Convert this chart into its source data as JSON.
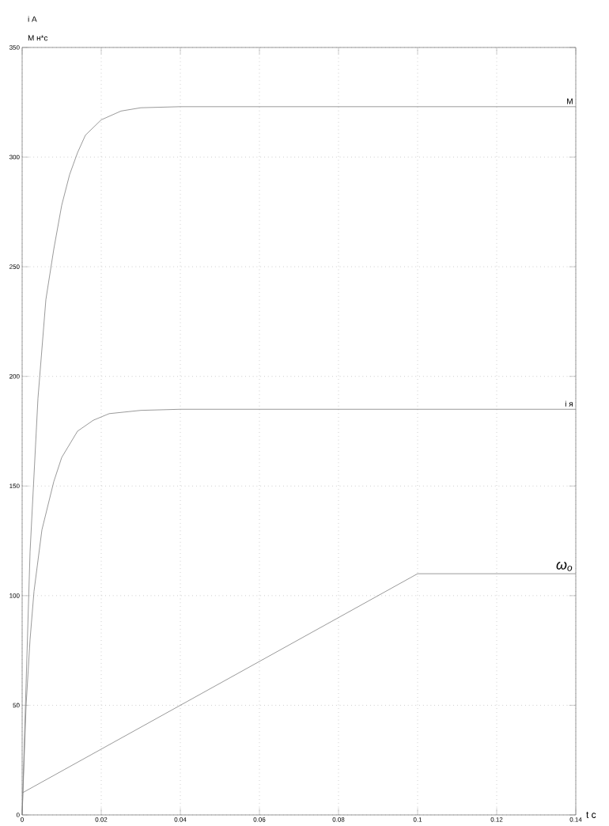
{
  "chart_data": {
    "type": "line",
    "xlabel": "t c",
    "ylabel": "i A",
    "annotations": [
      "M н*с"
    ],
    "xlim": [
      0,
      0.14
    ],
    "ylim": [
      0,
      350
    ],
    "xticks": [
      0,
      0.02,
      0.04,
      0.06,
      0.08,
      0.1,
      0.12,
      0.14
    ],
    "yticks": [
      0,
      50,
      100,
      150,
      200,
      250,
      300,
      350
    ],
    "grid": true,
    "marker": "none",
    "line_style": "solid",
    "series": [
      {
        "name": "M",
        "color": "#808080",
        "x": [
          0,
          0.001,
          0.002,
          0.004,
          0.006,
          0.008,
          0.01,
          0.012,
          0.014,
          0.016,
          0.02,
          0.025,
          0.03,
          0.04,
          0.14
        ],
        "values": [
          0,
          60,
          120,
          190,
          235,
          258,
          278,
          292,
          302,
          310,
          317,
          321,
          322.5,
          323,
          323
        ]
      },
      {
        "name": "i я",
        "color": "#808080",
        "x": [
          0,
          0.001,
          0.002,
          0.003,
          0.005,
          0.008,
          0.01,
          0.014,
          0.018,
          0.022,
          0.03,
          0.04,
          0.14
        ],
        "values": [
          0,
          50,
          80,
          102,
          130,
          152,
          163,
          175,
          180,
          183,
          184.5,
          185,
          185
        ]
      },
      {
        "name": "ω$_{o}$",
        "color": "#808080",
        "x": [
          0,
          0.1,
          0.14
        ],
        "values": [
          10,
          110,
          110
        ]
      }
    ]
  }
}
